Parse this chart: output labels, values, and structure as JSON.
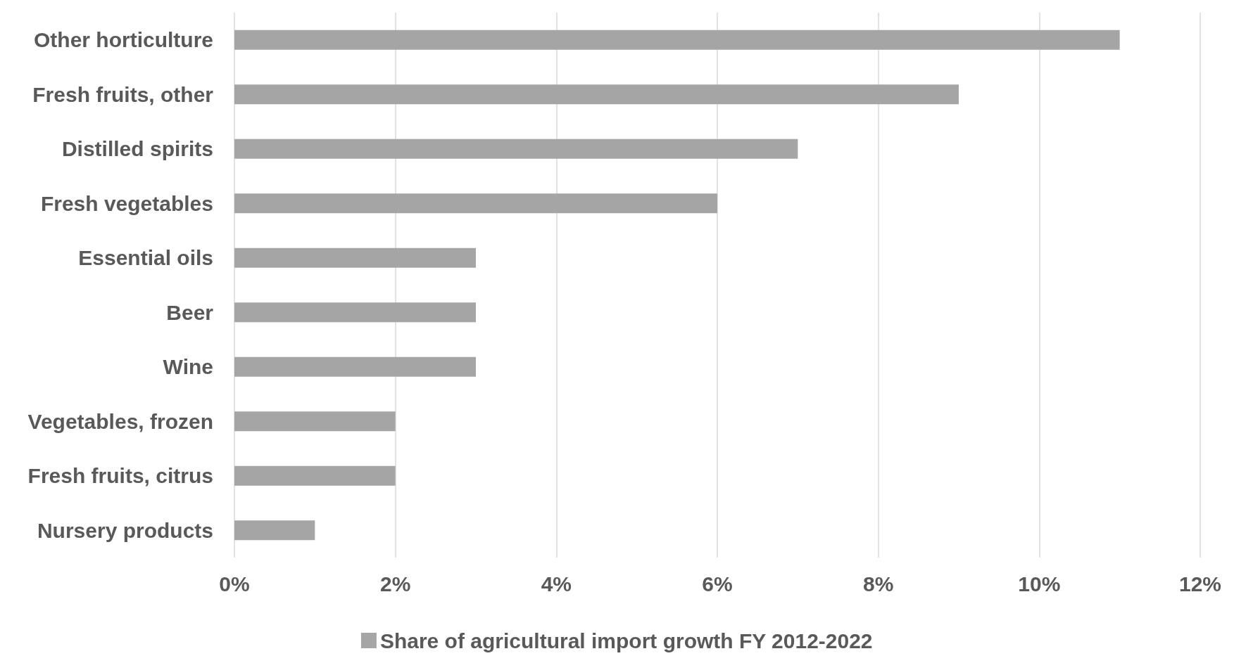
{
  "chart_data": {
    "type": "bar",
    "orientation": "horizontal",
    "categories": [
      "Other horticulture",
      "Fresh fruits, other",
      "Distilled spirits",
      "Fresh vegetables",
      "Essential oils",
      "Beer",
      "Wine",
      "Vegetables, frozen",
      "Fresh fruits, citrus",
      "Nursery products"
    ],
    "series": [
      {
        "name": "Share of agricultural import growth FY 2012-2022",
        "color": "#a5a5a5",
        "values": [
          11,
          9,
          7,
          6,
          3,
          3,
          3,
          2,
          2,
          1
        ]
      }
    ],
    "xlim": [
      0,
      12
    ],
    "xticks": [
      {
        "value": 0,
        "label": "0%"
      },
      {
        "value": 2,
        "label": "2%"
      },
      {
        "value": 4,
        "label": "4%"
      },
      {
        "value": 6,
        "label": "6%"
      },
      {
        "value": 8,
        "label": "8%"
      },
      {
        "value": 10,
        "label": "10%"
      },
      {
        "value": 12,
        "label": "12%"
      }
    ],
    "grid": "x",
    "legend": "bottom"
  }
}
